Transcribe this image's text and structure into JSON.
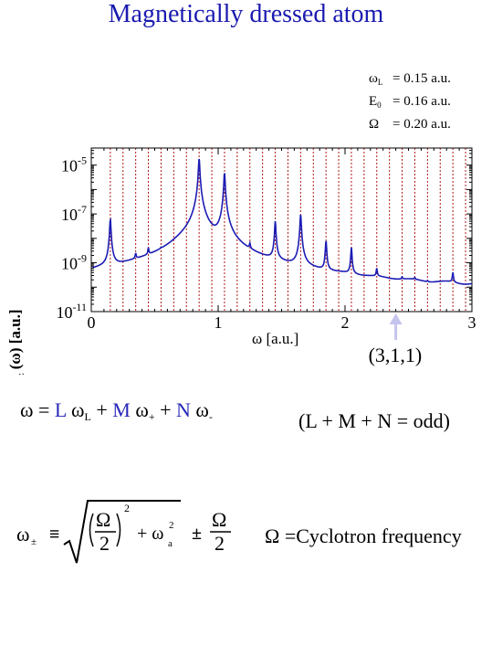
{
  "title": "Magnetically dressed atom",
  "params": [
    {
      "sym": "ω",
      "sub": "L",
      "value": "= 0.15 a.u."
    },
    {
      "sym": "E",
      "sub": "0",
      "value": "= 0.16 a.u."
    },
    {
      "sym": "Ω",
      "sub": "",
      "value": "= 0.20 a.u."
    }
  ],
  "colors": {
    "title": "#1a1ab0",
    "curve": "#1c1cb4",
    "guide_lines": "#b01818",
    "arrow": "#c4c4ee"
  },
  "chart_data": {
    "type": "line",
    "xlabel": "ω  [a.u.]",
    "ylabel": "I",
    "ylabel_sub": "z",
    "ylabel_rest": " (ω) [a.u.]",
    "xlim": [
      0,
      3
    ],
    "ylim_log10": [
      -11,
      -4.3
    ],
    "y_scale": "log",
    "x_ticks": [
      "0",
      "1",
      "2",
      "3"
    ],
    "y_ticks": [
      {
        "base": "10",
        "exp": "-5",
        "log10": -5
      },
      {
        "base": "10",
        "exp": "-7",
        "log10": -7
      },
      {
        "base": "10",
        "exp": "-9",
        "log10": -9
      },
      {
        "base": "10",
        "exp": "-11",
        "log10": -11
      }
    ],
    "dotted_lines_x": [
      0.15,
      0.25,
      0.35,
      0.45,
      0.55,
      0.65,
      0.75,
      0.85,
      0.95,
      1.05,
      1.15,
      1.25,
      1.35,
      1.45,
      1.55,
      1.65,
      1.75,
      1.85,
      1.95,
      2.05,
      2.15,
      2.25,
      2.35,
      2.45,
      2.55,
      2.65,
      2.75,
      2.85,
      2.95
    ],
    "peaks": [
      {
        "x": 0.15,
        "log10": -7.2
      },
      {
        "x": 0.35,
        "log10": -9.0
      },
      {
        "x": 0.45,
        "log10": -8.7
      },
      {
        "x": 0.55,
        "log10": -9.4
      },
      {
        "x": 0.85,
        "log10": -4.7
      },
      {
        "x": 1.05,
        "log10": -5.3
      },
      {
        "x": 1.25,
        "log10": -8.6
      },
      {
        "x": 1.45,
        "log10": -7.3
      },
      {
        "x": 1.65,
        "log10": -7.0
      },
      {
        "x": 1.85,
        "log10": -8.1
      },
      {
        "x": 2.05,
        "log10": -8.4
      },
      {
        "x": 2.25,
        "log10": -9.5
      },
      {
        "x": 2.45,
        "log10": -10.3
      },
      {
        "x": 2.55,
        "log10": -10.4
      },
      {
        "x": 2.65,
        "log10": -10.7
      },
      {
        "x": 2.85,
        "log10": -9.6
      }
    ],
    "baseline_log10": -10.3,
    "annotation": {
      "x": 2.4,
      "label": "(3,1,1)"
    }
  },
  "equation1": {
    "w": "ω",
    "eq": " = ",
    "L": "L",
    "wL": " ω",
    "wL_sub": "L",
    "plus1": " + ",
    "M": "M",
    "wp": " ω",
    "wp_sub": "+",
    "plus2": " + ",
    "N": "N",
    "wm": " ω",
    "wm_sub": "-"
  },
  "condition": "(L + M + N = odd)",
  "equation2": {
    "lhs": "ω",
    "lhs_sub": "±",
    "equiv": " ≡ ",
    "omega": "Ω",
    "two": "2",
    "power": "2",
    "plus": "+ ω",
    "wa_sub": "a",
    "wa_sup": "2",
    "pm": "±",
    "omega2": "Ω",
    "two2": "2"
  },
  "definition": "Ω =Cyclotron frequency"
}
